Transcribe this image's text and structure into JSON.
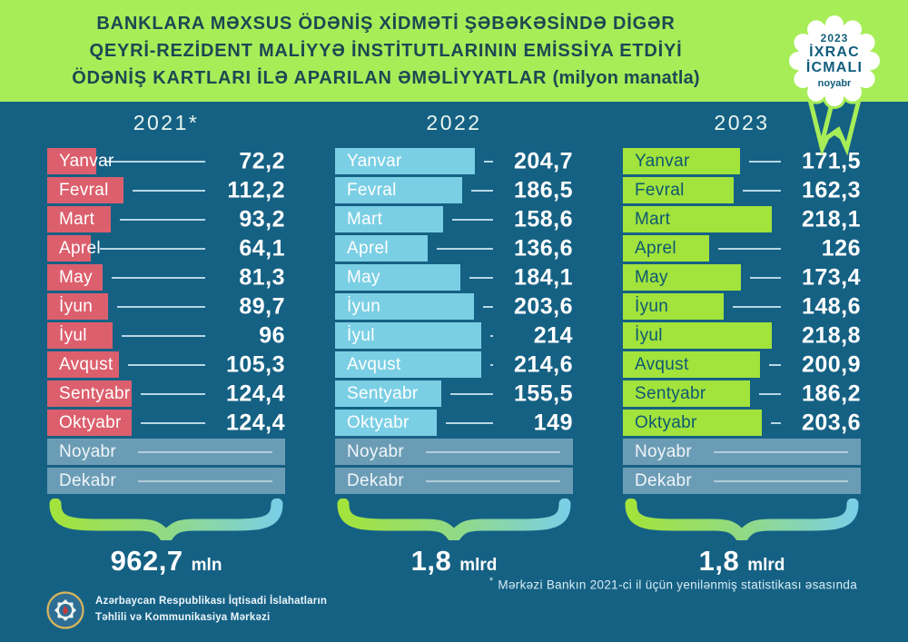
{
  "header": {
    "title_line1": "BANKLARA MƏXSUS ÖDƏNİŞ XİDMƏTİ ŞƏBƏKƏSİNDƏ DİGƏR",
    "title_line2": "QEYRİ-REZİDENT MALİYYƏ İNSTİTUTLARININ EMİSSİYA ETDİYİ",
    "title_line3": "ÖDƏNİŞ KARTLARI İLƏ APARILAN ƏMƏLİYYATLAR",
    "title_unit": "(milyon manatla)"
  },
  "badge": {
    "year": "2023",
    "line1": "İXRAC",
    "line2": "İCMALI",
    "month": "noyabr"
  },
  "chart_data": {
    "type": "bar",
    "title": "Banklara məxsus ödəniş xidməti şəbəkəsində digər qeyri-rezident maliyyə institutlarının emissiya etdiyi ödəniş kartları ilə aparılan əməliyyatlar",
    "unit": "milyon manatla",
    "orientation": "horizontal",
    "categories": [
      "Yanvar",
      "Fevral",
      "Mart",
      "Aprel",
      "May",
      "İyun",
      "İyul",
      "Avqust",
      "Sentyabr",
      "Oktyabr",
      "Noyabr",
      "Dekabr"
    ],
    "series": [
      {
        "name": "2021*",
        "bar_color": "#dc5f6d",
        "label_color": "#ffffff",
        "values": [
          72.2,
          112.2,
          93.2,
          64.1,
          81.3,
          89.7,
          96,
          105.3,
          124.4,
          124.4,
          null,
          null
        ],
        "labels": [
          "72,2",
          "112,2",
          "93,2",
          "64,1",
          "81,3",
          "89,7",
          "96",
          "105,3",
          "124,4",
          "124,4",
          "",
          ""
        ],
        "total": "962,7",
        "total_unit": "mln"
      },
      {
        "name": "2022",
        "bar_color": "#7bcfe4",
        "label_color": "#ffffff",
        "values": [
          204.7,
          186.5,
          158.6,
          136.6,
          184.1,
          203.6,
          214,
          214.6,
          155.5,
          149,
          null,
          null
        ],
        "labels": [
          "204,7",
          "186,5",
          "158,6",
          "136,6",
          "184,1",
          "203,6",
          "214",
          "214,6",
          "155,5",
          "149",
          "",
          ""
        ],
        "total": "1,8",
        "total_unit": "mlrd"
      },
      {
        "name": "2023",
        "bar_color": "#a2e33c",
        "label_color": "#0e5872",
        "values": [
          171.5,
          162.3,
          218.1,
          126,
          173.4,
          148.6,
          218.8,
          200.9,
          186.2,
          203.6,
          null,
          null
        ],
        "labels": [
          "171,5",
          "162,3",
          "218,1",
          "126",
          "173,4",
          "148,6",
          "218,8",
          "200,9",
          "186,2",
          "203,6",
          "",
          ""
        ],
        "total": "1,8",
        "total_unit": "mlrd"
      }
    ],
    "empty_months": [
      "Noyabr",
      "Dekabr"
    ],
    "colors": {
      "background": "#156184",
      "title_band": "#a7ed58",
      "empty_bar": "#6b9cb5",
      "brace_start": "#a2e33c",
      "brace_end": "#7bcfe4"
    }
  },
  "footnote": {
    "marker": "*",
    "text": "Mərkəzi Bankın 2021-ci il üçün yenilənmiş statistikası əsasında"
  },
  "footer": {
    "org_line1": "Azərbaycan Respublikası İqtisadi İslahatların",
    "org_line2": "Təhlili və Kommunikasiya Mərkəzi"
  }
}
